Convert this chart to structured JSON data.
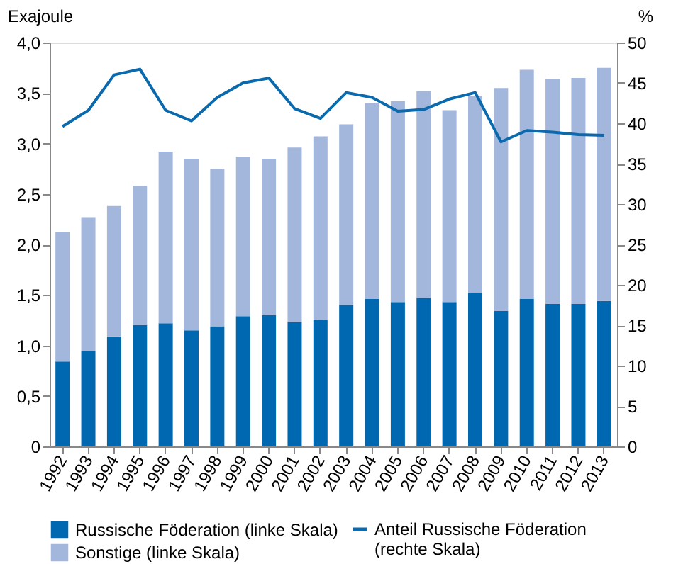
{
  "chart_data": {
    "type": "bar",
    "stacked": true,
    "ylabel": "Exajoule",
    "y2label": "%",
    "categories": [
      "1992",
      "1993",
      "1994",
      "1995",
      "1996",
      "1997",
      "1998",
      "1999",
      "2000",
      "2001",
      "2002",
      "2003",
      "2004",
      "2005",
      "2006",
      "2007",
      "2008",
      "2009",
      "2010",
      "2011",
      "2012",
      "2013"
    ],
    "series": [
      {
        "name": "Russische Föderation (linke Skala)",
        "color": "#0068b0",
        "values": [
          0.84,
          0.94,
          1.09,
          1.2,
          1.22,
          1.15,
          1.19,
          1.29,
          1.3,
          1.23,
          1.25,
          1.4,
          1.46,
          1.43,
          1.47,
          1.43,
          1.52,
          1.34,
          1.46,
          1.41,
          1.41,
          1.44
        ]
      },
      {
        "name": "Sonstige (linke Skala)",
        "color": "#a3b6dc",
        "values": [
          1.28,
          1.33,
          1.29,
          1.38,
          1.7,
          1.7,
          1.56,
          1.58,
          1.55,
          1.73,
          1.82,
          1.79,
          1.94,
          1.99,
          2.05,
          1.9,
          1.95,
          2.21,
          2.27,
          2.23,
          2.24,
          2.31
        ]
      },
      {
        "name": "Anteil Russische Föderation (rechte Skala)",
        "type": "line",
        "axis": "y2",
        "color": "#0a6aad",
        "values": [
          39.6,
          41.6,
          46.0,
          46.7,
          41.6,
          40.3,
          43.2,
          45.0,
          45.6,
          41.8,
          40.6,
          43.8,
          43.2,
          41.5,
          41.7,
          43.0,
          43.8,
          37.7,
          39.1,
          38.9,
          38.6,
          38.5
        ]
      }
    ],
    "ylim": [
      0,
      4
    ],
    "yticks": [
      0,
      {
        "value": 0.5,
        "label": "0,5"
      },
      {
        "value": 1,
        "label": "1,0"
      },
      {
        "value": 1.5,
        "label": "1,5"
      },
      {
        "value": 2,
        "label": "2,0"
      },
      {
        "value": 2.5,
        "label": "2,5"
      },
      {
        "value": 3,
        "label": "3,0"
      },
      {
        "value": 3.5,
        "label": "3,5"
      },
      {
        "value": 4,
        "label": "4,0"
      }
    ],
    "y2lim": [
      0,
      50
    ],
    "y2ticks": [
      0,
      5,
      10,
      15,
      20,
      25,
      30,
      35,
      40,
      45,
      50
    ],
    "grid": false,
    "legend": "bottom"
  }
}
